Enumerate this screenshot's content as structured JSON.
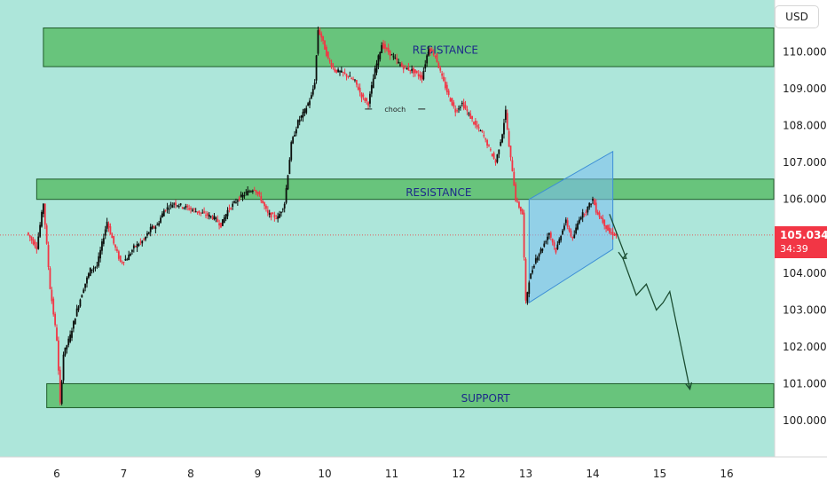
{
  "currency_label": "USD",
  "last_price": "105.034",
  "countdown": "34:39",
  "colors": {
    "background": "#ade6da",
    "zone_fill": "#5cbd6b",
    "zone_border": "#1f5c2a",
    "bull": "#0b0f0c",
    "bear": "#f23645",
    "channel": "#7bbdf2",
    "projection": "#1b4d32",
    "price_line": "#e05b5b"
  },
  "chart_data": {
    "type": "candlestick",
    "title": "",
    "x_ticks": [
      "6",
      "7",
      "8",
      "9",
      "10",
      "11",
      "12",
      "13",
      "14",
      "15",
      "16"
    ],
    "y_ticks": [
      "100.000",
      "101.000",
      "102.000",
      "103.000",
      "104.000",
      "105.000",
      "106.000",
      "107.000",
      "108.000",
      "109.000",
      "110.000"
    ],
    "ylim": [
      99.5,
      111.2
    ],
    "last_price": 105.034,
    "zones": [
      {
        "name": "RESISTANCE",
        "label": "RESISTANCE",
        "from": 109.6,
        "to": 110.65,
        "x_from": 5.8,
        "x_to": 16.8
      },
      {
        "name": "RESISTANCE",
        "label": "RESISTANCE",
        "from": 106.0,
        "to": 106.55,
        "x_from": 5.7,
        "x_to": 16.8
      },
      {
        "name": "SUPPORT",
        "label": "SUPPORT",
        "from": 100.35,
        "to": 101.0,
        "x_from": 5.85,
        "x_to": 16.8
      }
    ],
    "annotations": [
      {
        "text": "choch",
        "x_from": 10.6,
        "x_to": 11.5,
        "y": 108.45
      }
    ],
    "price_path": [
      [
        5.55,
        105.1
      ],
      [
        5.7,
        104.7
      ],
      [
        5.8,
        105.9
      ],
      [
        5.9,
        103.6
      ],
      [
        6.0,
        102.2
      ],
      [
        6.05,
        100.45
      ],
      [
        6.1,
        101.8
      ],
      [
        6.2,
        102.3
      ],
      [
        6.3,
        103.0
      ],
      [
        6.4,
        103.6
      ],
      [
        6.5,
        104.1
      ],
      [
        6.6,
        104.2
      ],
      [
        6.65,
        104.6
      ],
      [
        6.7,
        105.0
      ],
      [
        6.75,
        105.4
      ],
      [
        6.85,
        104.8
      ],
      [
        6.95,
        104.3
      ],
      [
        7.05,
        104.4
      ],
      [
        7.15,
        104.7
      ],
      [
        7.3,
        104.9
      ],
      [
        7.4,
        105.2
      ],
      [
        7.5,
        105.3
      ],
      [
        7.6,
        105.7
      ],
      [
        7.75,
        105.9
      ],
      [
        7.9,
        105.8
      ],
      [
        8.05,
        105.7
      ],
      [
        8.2,
        105.6
      ],
      [
        8.35,
        105.5
      ],
      [
        8.45,
        105.3
      ],
      [
        8.55,
        105.7
      ],
      [
        8.7,
        106.0
      ],
      [
        8.85,
        106.2
      ],
      [
        8.95,
        106.3
      ],
      [
        9.05,
        106.0
      ],
      [
        9.15,
        105.6
      ],
      [
        9.3,
        105.5
      ],
      [
        9.4,
        105.9
      ],
      [
        9.45,
        106.7
      ],
      [
        9.5,
        107.5
      ],
      [
        9.6,
        108.1
      ],
      [
        9.7,
        108.4
      ],
      [
        9.8,
        108.8
      ],
      [
        9.85,
        109.2
      ],
      [
        9.9,
        110.6
      ],
      [
        9.95,
        110.4
      ],
      [
        10.05,
        109.8
      ],
      [
        10.15,
        109.5
      ],
      [
        10.3,
        109.4
      ],
      [
        10.45,
        109.2
      ],
      [
        10.55,
        108.8
      ],
      [
        10.65,
        108.6
      ],
      [
        10.75,
        109.5
      ],
      [
        10.85,
        110.2
      ],
      [
        10.95,
        110.0
      ],
      [
        11.05,
        109.8
      ],
      [
        11.15,
        109.6
      ],
      [
        11.3,
        109.5
      ],
      [
        11.45,
        109.3
      ],
      [
        11.55,
        110.1
      ],
      [
        11.65,
        109.9
      ],
      [
        11.75,
        109.3
      ],
      [
        11.85,
        108.8
      ],
      [
        11.95,
        108.4
      ],
      [
        12.05,
        108.6
      ],
      [
        12.15,
        108.3
      ],
      [
        12.25,
        108.0
      ],
      [
        12.35,
        107.8
      ],
      [
        12.45,
        107.4
      ],
      [
        12.55,
        107.0
      ],
      [
        12.65,
        107.8
      ],
      [
        12.7,
        108.4
      ],
      [
        12.75,
        107.4
      ],
      [
        12.8,
        106.8
      ],
      [
        12.85,
        106.0
      ],
      [
        12.95,
        105.6
      ],
      [
        13.0,
        103.2
      ],
      [
        13.05,
        103.8
      ],
      [
        13.15,
        104.4
      ],
      [
        13.25,
        104.7
      ],
      [
        13.35,
        105.1
      ],
      [
        13.45,
        104.6
      ],
      [
        13.55,
        105.2
      ],
      [
        13.6,
        105.4
      ],
      [
        13.7,
        104.9
      ],
      [
        13.8,
        105.5
      ],
      [
        13.9,
        105.7
      ],
      [
        14.0,
        106.0
      ],
      [
        14.05,
        105.7
      ],
      [
        14.15,
        105.4
      ],
      [
        14.25,
        105.1
      ],
      [
        14.35,
        105.034
      ]
    ],
    "channel": {
      "upper": [
        [
          13.05,
          106.0
        ],
        [
          14.3,
          107.3
        ]
      ],
      "lower": [
        [
          13.05,
          103.2
        ],
        [
          14.3,
          104.65
        ]
      ]
    },
    "projection": [
      [
        14.25,
        105.6
      ],
      [
        14.5,
        104.4
      ],
      [
        14.45,
        104.4
      ],
      [
        14.65,
        103.4
      ],
      [
        14.8,
        103.7
      ],
      [
        14.95,
        103.0
      ],
      [
        15.05,
        103.2
      ],
      [
        15.15,
        103.5
      ],
      [
        15.45,
        100.85
      ]
    ]
  }
}
